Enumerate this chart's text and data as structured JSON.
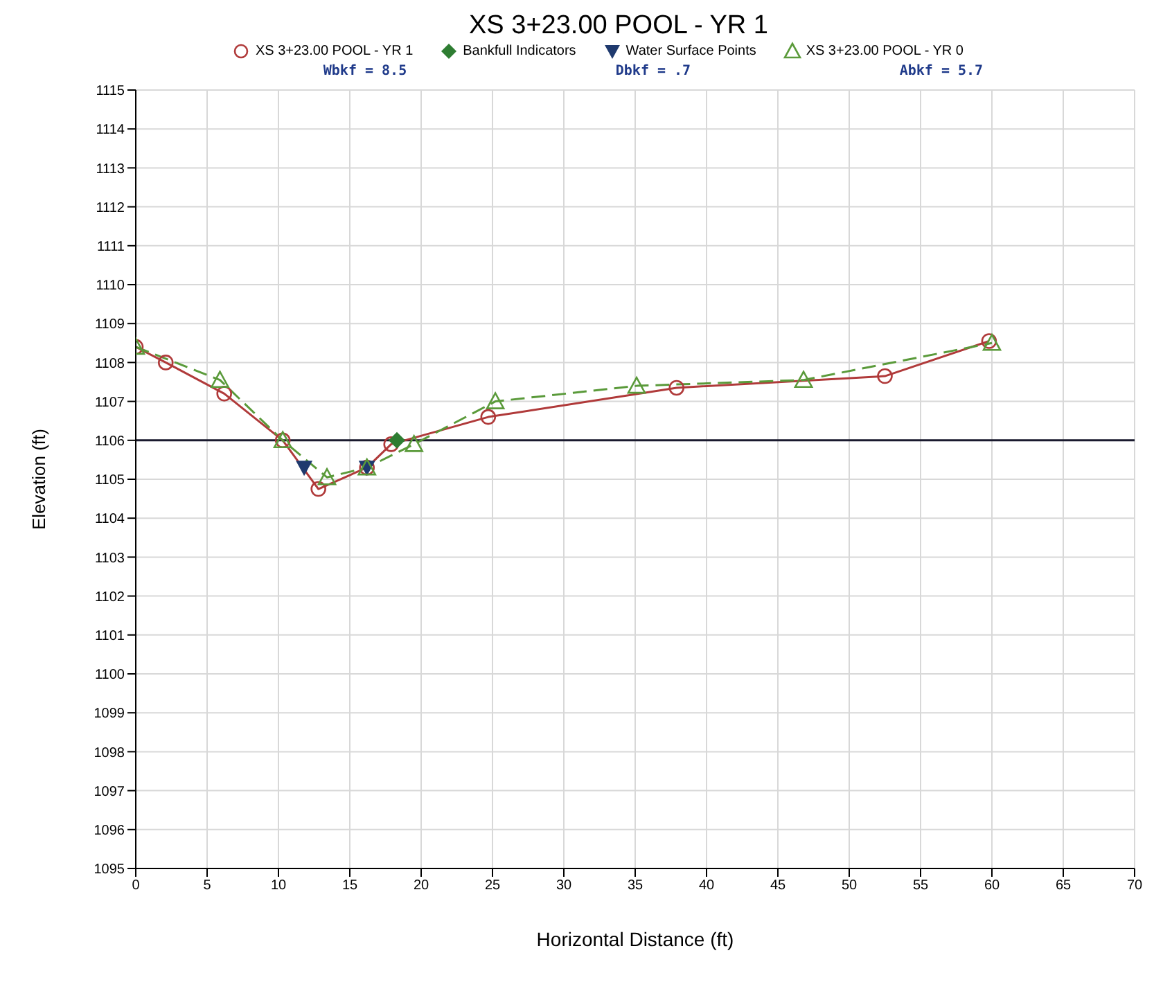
{
  "chart_data": {
    "type": "line",
    "title": "XS 3+23.00 POOL - YR 1",
    "xlabel": "Horizontal Distance (ft)",
    "ylabel": "Elevation (ft)",
    "annotations": [
      "Wbkf = 8.5",
      "Dbkf = .7",
      "Abkf = 5.7"
    ],
    "series": [
      {
        "name": "XS 3+23.00 POOL - YR 1",
        "color": "#b03a3a",
        "marker": "circle",
        "line_style": "solid",
        "x": [
          0,
          2.1,
          6.2,
          10.3,
          12.8,
          16.2,
          17.9,
          24.7,
          37.9,
          52.5,
          59.8
        ],
        "values": [
          1108.4,
          1108.0,
          1107.2,
          1106.0,
          1104.75,
          1105.3,
          1105.9,
          1106.6,
          1107.35,
          1107.65,
          1108.55
        ]
      },
      {
        "name": "Bankfull Indicators",
        "type": "scatter",
        "color": "#2e7d32",
        "marker": "diamond",
        "x": [
          18.3
        ],
        "values": [
          1106.0
        ]
      },
      {
        "name": "Water Surface Points",
        "type": "scatter",
        "color": "#1f3a6e",
        "marker": "triangle-down",
        "x": [
          11.8,
          16.2
        ],
        "values": [
          1105.3,
          1105.3
        ]
      },
      {
        "name": "XS 3+23.00 POOL - YR 0",
        "color": "#5a9a3a",
        "marker": "triangle",
        "line_style": "dashed",
        "x": [
          0,
          5.9,
          10.3,
          13.4,
          16.2,
          19.5,
          25.2,
          35.1,
          46.8,
          60.0
        ],
        "values": [
          1108.4,
          1107.55,
          1106.0,
          1105.05,
          1105.3,
          1105.9,
          1107.0,
          1107.4,
          1107.55,
          1108.5
        ]
      }
    ],
    "ref_lines": [
      {
        "axis": "y",
        "value": 1106,
        "color": "#1a1a2e",
        "line_style": "solid"
      }
    ],
    "xlim": [
      0,
      70
    ],
    "xticks": [
      0,
      5,
      10,
      15,
      20,
      25,
      30,
      35,
      40,
      45,
      50,
      55,
      60,
      65,
      70
    ],
    "ylim": [
      1095,
      1115
    ],
    "yticks": [
      1095,
      1096,
      1097,
      1098,
      1099,
      1100,
      1101,
      1102,
      1103,
      1104,
      1105,
      1106,
      1107,
      1108,
      1109,
      1110,
      1111,
      1112,
      1113,
      1114,
      1115
    ],
    "grid": true,
    "legend": "top"
  }
}
